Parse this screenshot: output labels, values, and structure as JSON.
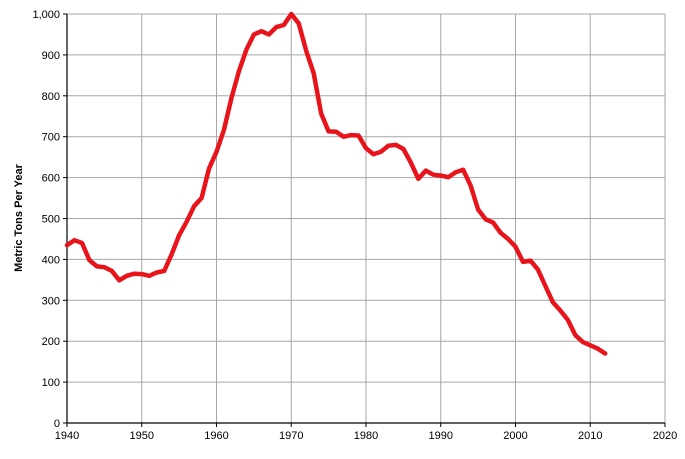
{
  "chart_data": {
    "type": "line",
    "title": "",
    "xlabel": "",
    "ylabel": "Metric Tons Per Year",
    "xlim": [
      1940,
      2020
    ],
    "ylim": [
      0,
      1000
    ],
    "x_ticks": [
      1940,
      1950,
      1960,
      1970,
      1980,
      1990,
      2000,
      2010,
      2020
    ],
    "y_ticks": [
      0,
      100,
      200,
      300,
      400,
      500,
      600,
      700,
      800,
      900,
      1000
    ],
    "y_tick_labels": [
      "0",
      "100",
      "200",
      "300",
      "400",
      "500",
      "600",
      "700",
      "800",
      "900",
      "1,000"
    ],
    "grid": true,
    "legend": "none",
    "line_color": "#e8141b",
    "grid_color": "#a6a6a6",
    "series": [
      {
        "x": [
          1940,
          1941,
          1942,
          1943,
          1944,
          1945,
          1946,
          1947,
          1948,
          1949,
          1950,
          1951,
          1952,
          1953,
          1954,
          1955,
          1956,
          1957,
          1958,
          1959,
          1960,
          1961,
          1962,
          1963,
          1964,
          1965,
          1966,
          1967,
          1968,
          1969,
          1970,
          1971,
          1972,
          1973,
          1974,
          1975,
          1976,
          1977,
          1978,
          1979,
          1980,
          1981,
          1982,
          1983,
          1984,
          1985,
          1986,
          1987,
          1988,
          1989,
          1990,
          1991,
          1992,
          1993,
          1994,
          1995,
          1996,
          1997,
          1998,
          1999,
          2000,
          2001,
          2002,
          2003,
          2004,
          2005,
          2006,
          2007,
          2008,
          2009,
          2010,
          2011,
          2012
        ],
        "values": [
          435,
          447,
          440,
          398,
          383,
          381,
          372,
          349,
          360,
          365,
          364,
          360,
          368,
          372,
          412,
          459,
          492,
          530,
          550,
          622,
          663,
          717,
          795,
          860,
          913,
          950,
          958,
          950,
          968,
          973,
          1000,
          977,
          910,
          855,
          757,
          713,
          712,
          700,
          704,
          703,
          672,
          657,
          663,
          678,
          680,
          670,
          637,
          597,
          617,
          607,
          605,
          601,
          613,
          619,
          580,
          522,
          498,
          490,
          465,
          450,
          431,
          394,
          397,
          375,
          335,
          295,
          275,
          252,
          215,
          198,
          190,
          182,
          170
        ]
      }
    ]
  }
}
